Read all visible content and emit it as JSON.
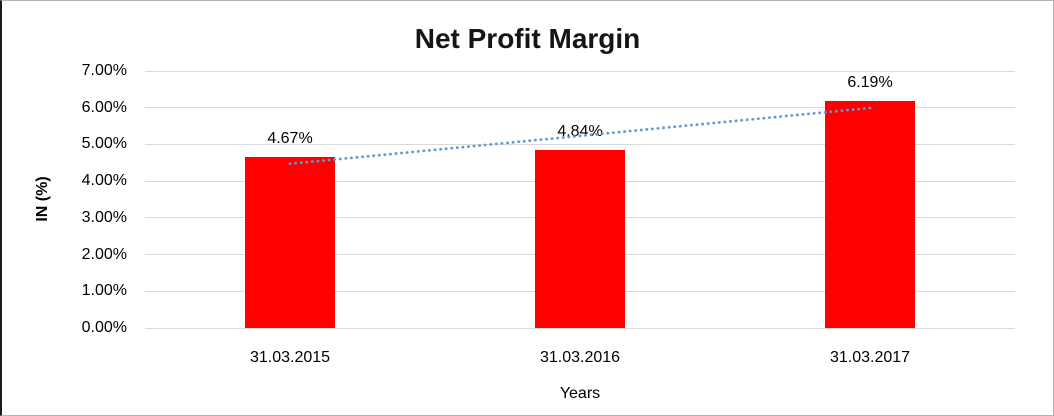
{
  "chart": {
    "background": "#FFFFFF",
    "frame_color": "#B3B3B3"
  },
  "chart_data": {
    "type": "bar",
    "title": "Net Profit Margin",
    "categories": [
      "31.03.2015",
      "31.03.2016",
      "31.03.2017"
    ],
    "values": [
      4.67,
      4.84,
      6.19
    ],
    "data_labels": [
      "4.67%",
      "4.84%",
      "6.19%"
    ],
    "xlabel": "Years",
    "ylabel": "IN (%)",
    "ylim": [
      0,
      7
    ],
    "ytick_step": 1,
    "ytick_labels": [
      "0.00%",
      "1.00%",
      "2.00%",
      "3.00%",
      "4.00%",
      "5.00%",
      "6.00%",
      "7.00%"
    ],
    "grid": true,
    "legend": "none",
    "bar_color": "#FF0000",
    "gridline_color": "#D9D9D9",
    "text_color": "#000000",
    "trendline": {
      "type": "linear",
      "style": "dotted",
      "color": "#5B9BD5"
    }
  }
}
